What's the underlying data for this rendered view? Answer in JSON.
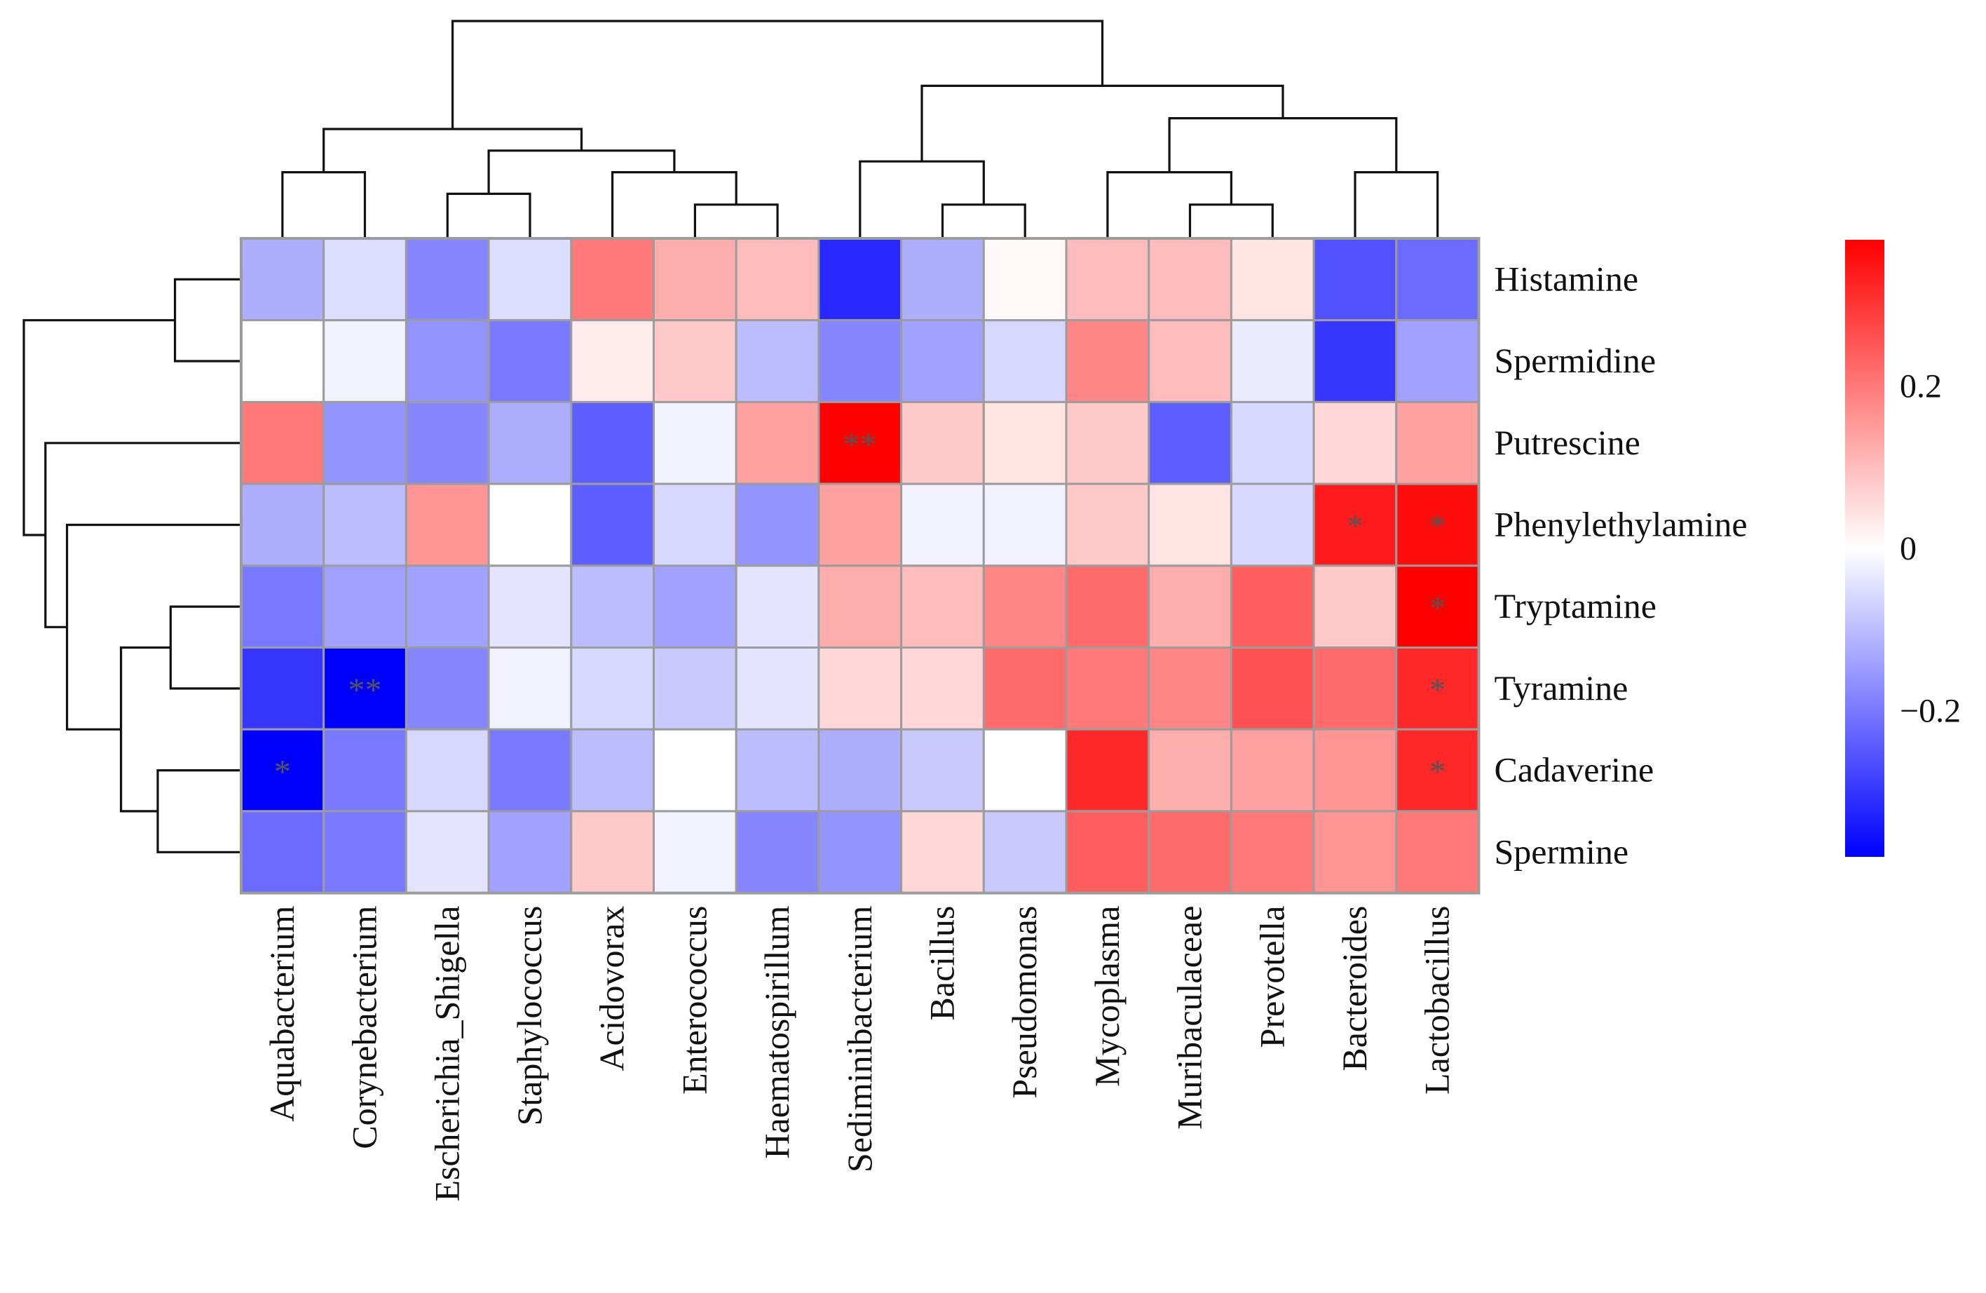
{
  "chart_data": {
    "type": "heatmap",
    "title": "",
    "rows": [
      "Histamine",
      "Spermidine",
      "Putrescine",
      "Phenylethylamine",
      "Tryptamine",
      "Tyramine",
      "Cadaverine",
      "Spermine"
    ],
    "columns": [
      "Aquabacterium",
      "Corynebacterium",
      "Escherichia_Shigella",
      "Staphylococcus",
      "Acidovorax",
      "Enterococcus",
      "Haematospirillum",
      "Sediminibacterium",
      "Bacillus",
      "Pseudomonas",
      "Mycoplasma",
      "Muribaculaceae",
      "Prevotella",
      "Bacteroides",
      "Lactobacillus"
    ],
    "values": [
      [
        -0.12,
        -0.05,
        -0.18,
        -0.05,
        0.2,
        0.12,
        0.1,
        -0.32,
        -0.12,
        0.01,
        0.1,
        0.1,
        0.04,
        -0.26,
        -0.22
      ],
      [
        0.0,
        -0.02,
        -0.16,
        -0.2,
        0.03,
        0.08,
        -0.1,
        -0.18,
        -0.14,
        -0.06,
        0.18,
        0.1,
        -0.03,
        -0.3,
        -0.14
      ],
      [
        0.2,
        -0.16,
        -0.18,
        -0.12,
        -0.24,
        -0.02,
        0.14,
        0.38,
        0.08,
        0.04,
        0.08,
        -0.24,
        -0.06,
        0.06,
        0.14
      ],
      [
        -0.12,
        -0.1,
        0.16,
        0.0,
        -0.24,
        -0.06,
        -0.16,
        0.14,
        -0.02,
        -0.02,
        0.08,
        0.04,
        -0.06,
        0.34,
        0.36
      ],
      [
        -0.2,
        -0.14,
        -0.14,
        -0.04,
        -0.1,
        -0.14,
        -0.04,
        0.12,
        0.1,
        0.18,
        0.22,
        0.12,
        0.24,
        0.08,
        0.38
      ],
      [
        -0.3,
        -0.38,
        -0.18,
        -0.02,
        -0.06,
        -0.08,
        -0.04,
        0.06,
        0.06,
        0.22,
        0.2,
        0.18,
        0.26,
        0.22,
        0.32
      ],
      [
        -0.38,
        -0.2,
        -0.06,
        -0.2,
        -0.1,
        0.0,
        -0.1,
        -0.12,
        -0.08,
        0.0,
        0.32,
        0.12,
        0.14,
        0.16,
        0.32
      ],
      [
        -0.22,
        -0.2,
        -0.04,
        -0.14,
        0.08,
        -0.02,
        -0.18,
        -0.16,
        0.06,
        -0.08,
        0.24,
        0.22,
        0.2,
        0.16,
        0.2
      ]
    ],
    "significance": [
      [
        "",
        "",
        "",
        "",
        "",
        "",
        "",
        "",
        "",
        "",
        "",
        "",
        "",
        "",
        ""
      ],
      [
        "",
        "",
        "",
        "",
        "",
        "",
        "",
        "",
        "",
        "",
        "",
        "",
        "",
        "",
        ""
      ],
      [
        "",
        "",
        "",
        "",
        "",
        "",
        "",
        "**",
        "",
        "",
        "",
        "",
        "",
        "",
        ""
      ],
      [
        "",
        "",
        "",
        "",
        "",
        "",
        "",
        "",
        "",
        "",
        "",
        "",
        "",
        "*",
        "*"
      ],
      [
        "",
        "",
        "",
        "",
        "",
        "",
        "",
        "",
        "",
        "",
        "",
        "",
        "",
        "",
        "*"
      ],
      [
        "",
        "**",
        "",
        "",
        "",
        "",
        "",
        "",
        "",
        "",
        "",
        "",
        "",
        "",
        "*"
      ],
      [
        "*",
        "",
        "",
        "",
        "",
        "",
        "",
        "",
        "",
        "",
        "",
        "",
        "",
        "",
        "*"
      ],
      [
        "",
        "",
        "",
        "",
        "",
        "",
        "",
        "",
        "",
        "",
        "",
        "",
        "",
        "",
        ""
      ]
    ],
    "color_scale": {
      "min": -0.38,
      "max": 0.38,
      "low_color": "#0000ff",
      "mid_color": "#ffffff",
      "high_color": "#ff0000",
      "ticks": [
        0.2,
        0,
        -0.2
      ],
      "tick_labels": [
        "0.2",
        "0",
        "−0.2"
      ]
    },
    "legend_position": "right",
    "row_dendrogram": "left",
    "column_dendrogram": "top"
  }
}
